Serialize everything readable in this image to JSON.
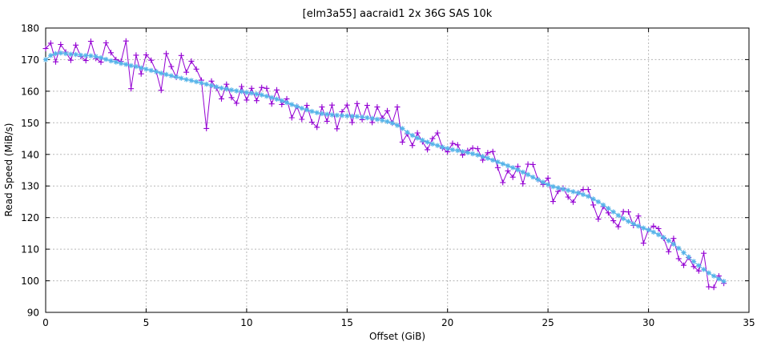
{
  "chart_data": {
    "type": "line",
    "title": "[elm3a55] aacraid1 2x 36G SAS 10k",
    "xlabel": "Offset (GiB)",
    "ylabel": "Read Speed (MiB/s)",
    "xlim": [
      0,
      35
    ],
    "ylim": [
      90,
      180
    ],
    "x_ticks": [
      0,
      5,
      10,
      15,
      20,
      25,
      30,
      35
    ],
    "y_ticks": [
      90,
      100,
      110,
      120,
      130,
      140,
      150,
      160,
      170,
      180
    ],
    "grid": true,
    "legend": "none",
    "colors": {
      "grid": "#b5b5b5",
      "border": "#000000",
      "text": "#000000"
    },
    "x": [
      0,
      0.25,
      0.5,
      0.75,
      1,
      1.25,
      1.5,
      1.75,
      2,
      2.25,
      2.5,
      2.75,
      3,
      3.25,
      3.5,
      3.75,
      4,
      4.25,
      4.5,
      4.75,
      5,
      5.25,
      5.5,
      5.75,
      6,
      6.25,
      6.5,
      6.75,
      7,
      7.25,
      7.5,
      7.75,
      8,
      8.25,
      8.5,
      8.75,
      9,
      9.25,
      9.5,
      9.75,
      10,
      10.25,
      10.5,
      10.75,
      11,
      11.25,
      11.5,
      11.75,
      12,
      12.25,
      12.5,
      12.75,
      13,
      13.25,
      13.5,
      13.75,
      14,
      14.25,
      14.5,
      14.75,
      15,
      15.25,
      15.5,
      15.75,
      16,
      16.25,
      16.5,
      16.75,
      17,
      17.25,
      17.5,
      17.75,
      18,
      18.25,
      18.5,
      18.75,
      19,
      19.25,
      19.5,
      19.75,
      20,
      20.25,
      20.5,
      20.75,
      21,
      21.25,
      21.5,
      21.75,
      22,
      22.25,
      22.5,
      22.75,
      23,
      23.25,
      23.5,
      23.75,
      24,
      24.25,
      24.5,
      24.75,
      25,
      25.25,
      25.5,
      25.75,
      26,
      26.25,
      26.5,
      26.75,
      27,
      27.25,
      27.5,
      27.75,
      28,
      28.25,
      28.5,
      28.75,
      29,
      29.25,
      29.5,
      29.75,
      30,
      30.25,
      30.5,
      30.75,
      31,
      31.25,
      31.5,
      31.75,
      32,
      32.25,
      32.5,
      32.75,
      33,
      33.25,
      33.5,
      33.75
    ],
    "series": [
      {
        "name": "read-speed-samples",
        "marker": "plus",
        "color": "#9400d3",
        "values": [
          173.5,
          175.2,
          169.3,
          174.8,
          172.4,
          169.8,
          174.6,
          171,
          169.7,
          175.8,
          170.4,
          169.2,
          175.3,
          172.2,
          170,
          169.4,
          175.9,
          160.8,
          171.4,
          165.5,
          171.5,
          169.8,
          166.2,
          160.3,
          171.9,
          167.8,
          164.4,
          171.3,
          166,
          169.5,
          167,
          163.5,
          148.2,
          163.2,
          161,
          157.6,
          162.2,
          158,
          156.2,
          161.5,
          157.2,
          160.9,
          157,
          161.2,
          160.9,
          156,
          160.4,
          155.8,
          157.6,
          151.6,
          155.2,
          151.1,
          155.5,
          150.2,
          148.6,
          155,
          150.5,
          155.6,
          148.1,
          153.5,
          155.6,
          150.1,
          156.1,
          151,
          155.5,
          150.1,
          155,
          151.5,
          153.8,
          149.9,
          155,
          143.9,
          146.5,
          142.8,
          146.8,
          144,
          141.5,
          145,
          146.8,
          142,
          140.8,
          143.5,
          143,
          139.8,
          141.2,
          142,
          141.8,
          138.2,
          140.5,
          140.9,
          135.8,
          131.1,
          134.8,
          132.8,
          136.2,
          130.7,
          136.9,
          136.8,
          132,
          130.5,
          132.5,
          125.1,
          128.3,
          129.3,
          126.5,
          124.9,
          127.8,
          128.9,
          128.9,
          124,
          119.5,
          123.5,
          121.5,
          119,
          117.1,
          121.9,
          121.8,
          117.5,
          120.5,
          111.9,
          116.2,
          117.3,
          116.5,
          113.5,
          109.2,
          113.4,
          107,
          104.9,
          107.4,
          104.5,
          103.1,
          108.7,
          98.1,
          97.9,
          101.5,
          99.2
        ]
      },
      {
        "name": "read-speed-smoothed",
        "marker": "asterisk",
        "color": "#56b4e9",
        "values": [
          170,
          171.3,
          171.9,
          172.1,
          171.9,
          171.7,
          171.6,
          171.4,
          171.3,
          171.2,
          171,
          170.6,
          170.1,
          169.6,
          169.2,
          168.8,
          168.5,
          168.1,
          167.8,
          167.4,
          167,
          166.6,
          166.2,
          165.7,
          165.3,
          164.9,
          164.5,
          164.1,
          163.7,
          163.4,
          163,
          162.6,
          162.2,
          161.8,
          161.4,
          161,
          160.7,
          160.4,
          160.1,
          159.9,
          159.6,
          159.4,
          159.1,
          158.8,
          158.4,
          158,
          157.5,
          157,
          156.4,
          155.8,
          155.2,
          154.6,
          154.1,
          153.6,
          153.2,
          152.9,
          152.7,
          152.5,
          152.4,
          152.3,
          152.2,
          152.1,
          152,
          151.8,
          151.6,
          151.4,
          151.1,
          150.8,
          150.4,
          149.9,
          149.2,
          148.2,
          147,
          146,
          145.2,
          144.5,
          143.9,
          143.3,
          142.8,
          142.3,
          141.9,
          141.5,
          141.2,
          140.9,
          140.6,
          140.2,
          139.8,
          139.3,
          138.8,
          138.2,
          137.6,
          137,
          136.4,
          135.8,
          135.1,
          134.4,
          133.6,
          132.8,
          132,
          131.2,
          130.4,
          129.8,
          129.4,
          129,
          128.6,
          128.2,
          127.8,
          127.3,
          126.7,
          125.9,
          125,
          124,
          122.9,
          121.8,
          120.7,
          119.7,
          118.8,
          118,
          117.3,
          116.7,
          116.1,
          115.4,
          114.6,
          113.7,
          112.7,
          111.6,
          110.3,
          108.9,
          107.5,
          106.1,
          104.8,
          103.6,
          102.5,
          101.5,
          100.6,
          99.8
        ]
      }
    ]
  }
}
